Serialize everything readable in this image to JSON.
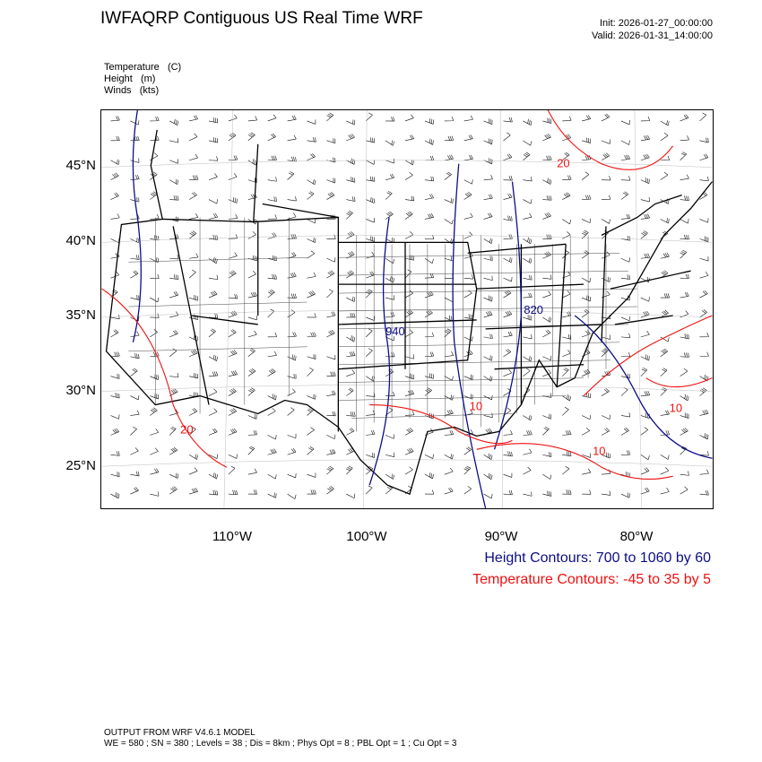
{
  "header": {
    "title": "IWFAQRP Contiguous US Real Time WRF",
    "init": "Init: 2026-01-27_00:00:00",
    "valid": "Valid: 2026-01-31_14:00:00"
  },
  "fields": [
    {
      "name": "Temperature",
      "unit": "(C)"
    },
    {
      "name": "Height",
      "unit": "(m)"
    },
    {
      "name": "Winds",
      "unit": "(kts)"
    }
  ],
  "axes": {
    "lat_labels": [
      "45°N",
      "40°N",
      "35°N",
      "30°N",
      "25°N"
    ],
    "lon_labels": [
      "110°W",
      "100°W",
      "90°W",
      "80°W"
    ]
  },
  "contour_labels": {
    "height": [
      "940",
      "820"
    ],
    "temperature": [
      "20",
      "20",
      "10",
      "10",
      "10"
    ]
  },
  "legend": {
    "height_contours": "Height Contours: 700 to 1060 by 60",
    "temperature_contours": "Temperature Contours: -45 to 35 by 5"
  },
  "footer": {
    "line1": "OUTPUT FROM WRF V4.6.1 MODEL",
    "line2": "WE = 580 ; SN = 380 ; Levels = 38 ; Dis = 8km ; Phys Opt = 8 ; PBL Opt = 1 ; Cu Opt = 3"
  },
  "colors": {
    "height": "#0d0d88",
    "temperature": "#ee1111",
    "borders": "#000000"
  }
}
